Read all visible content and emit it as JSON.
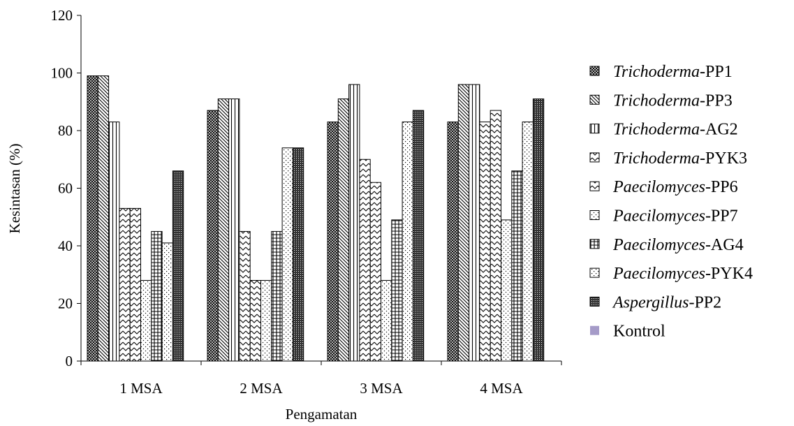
{
  "chart_data": {
    "type": "bar",
    "xlabel": "Pengamatan",
    "ylabel": "Kesintasan (%)",
    "ylim": [
      0,
      120
    ],
    "yticks": [
      "0",
      "20",
      "40",
      "60",
      "80",
      "100",
      "120"
    ],
    "grid": false,
    "legend_position": "right",
    "categories": [
      "1 MSA",
      "2 MSA",
      "3 MSA",
      "4 MSA"
    ],
    "series": [
      {
        "name": "Trichoderma-PP1",
        "name_italic": "Trichoderma",
        "name_rest": "-PP1",
        "pattern": "cross",
        "values": [
          99,
          87,
          83,
          83
        ]
      },
      {
        "name": "Trichoderma-PP3",
        "name_italic": "Trichoderma",
        "name_rest": "-PP3",
        "pattern": "diag",
        "values": [
          99,
          91,
          91,
          96
        ]
      },
      {
        "name": "Trichoderma-AG2",
        "name_italic": "Trichoderma",
        "name_rest": "-AG2",
        "pattern": "vlines",
        "values": [
          83,
          91,
          96,
          96
        ]
      },
      {
        "name": "Trichoderma-PYK3",
        "name_italic": "Trichoderma",
        "name_rest": "-PYK3",
        "pattern": "zigzag",
        "values": [
          53,
          45,
          70,
          83
        ]
      },
      {
        "name": "Paecilomyces-PP6",
        "name_italic": "Paecilomyces",
        "name_rest": "-PP6",
        "pattern": "zigzag",
        "values": [
          53,
          28,
          62,
          87
        ]
      },
      {
        "name": "Paecilomyces-PP7",
        "name_italic": "Paecilomyces",
        "name_rest": "-PP7",
        "pattern": "dots",
        "values": [
          28,
          28,
          28,
          49
        ]
      },
      {
        "name": "Paecilomyces-AG4",
        "name_italic": "Paecilomyces",
        "name_rest": "-AG4",
        "pattern": "grid",
        "values": [
          45,
          45,
          49,
          66
        ]
      },
      {
        "name": "Paecilomyces-PYK4",
        "name_italic": "Paecilomyces",
        "name_rest": "-PYK4",
        "pattern": "sparse",
        "values": [
          41,
          74,
          83,
          83
        ]
      },
      {
        "name": "Aspergillus-PP2",
        "name_italic": "Aspergillus",
        "name_rest": "-PP2",
        "pattern": "dense",
        "values": [
          66,
          74,
          87,
          91
        ]
      },
      {
        "name": "Kontrol",
        "name_italic": "",
        "name_rest": "Kontrol",
        "pattern": "solid",
        "color": "#a59bc8",
        "values": [
          0,
          0,
          0,
          0
        ]
      }
    ]
  }
}
